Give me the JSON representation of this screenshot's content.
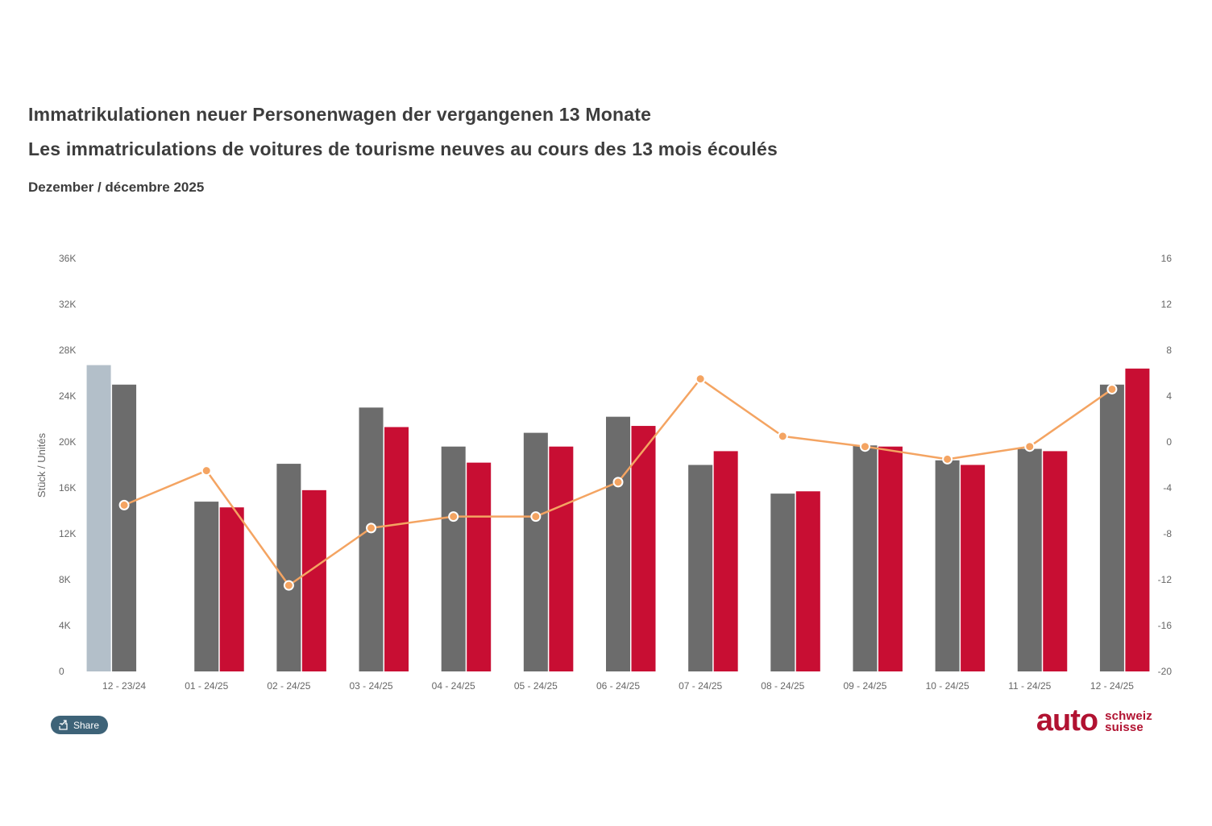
{
  "header": {
    "title_de": "Immatrikulationen neuer Personenwagen der vergangenen 13 Monate",
    "title_fr": "Les immatriculations de voitures de tourisme neuves au cours des 13 mois écoulés",
    "subtitle": "Dezember / décembre 2025"
  },
  "share": {
    "label": "Share"
  },
  "logo": {
    "word": "auto",
    "line1": "schweiz",
    "line2": "suisse",
    "color": "#b11231"
  },
  "chart_data": {
    "type": "combo-column-line",
    "title": "",
    "categories": [
      "12 - 23/24",
      "01 - 24/25",
      "02 - 24/25",
      "03 - 24/25",
      "04 - 24/25",
      "05 - 24/25",
      "06 - 24/25",
      "07 - 24/25",
      "08 - 24/25",
      "09 - 24/25",
      "10 - 24/25",
      "11 - 24/25",
      "12 - 24/25"
    ],
    "series": [
      {
        "name": "column-lightgray",
        "type": "column",
        "color": "#b3bfc9",
        "values": [
          26700,
          null,
          null,
          null,
          null,
          null,
          null,
          null,
          null,
          null,
          null,
          null,
          null
        ]
      },
      {
        "name": "column-darkgray",
        "type": "column",
        "color": "#6c6c6c",
        "values": [
          25000,
          14800,
          18100,
          23000,
          19600,
          20800,
          22200,
          18000,
          15500,
          19700,
          18400,
          19400,
          25000
        ]
      },
      {
        "name": "column-red",
        "type": "column",
        "color": "#c80e33",
        "values": [
          null,
          14300,
          15800,
          21300,
          18200,
          19600,
          21400,
          19200,
          15700,
          19600,
          18000,
          19200,
          26400
        ]
      },
      {
        "name": "line-change",
        "type": "line",
        "color": "#f4a462",
        "marker_stroke": "#ffffff",
        "values": [
          -5.5,
          -2.5,
          -12.5,
          -7.5,
          -6.5,
          -6.5,
          -3.5,
          5.5,
          0.5,
          -0.4,
          -1.5,
          -0.4,
          4.6
        ]
      }
    ],
    "yaxis_left": {
      "title": "Stück / Unités",
      "min": 0,
      "max": 36000,
      "ticks": [
        "0",
        "4K",
        "8K",
        "12K",
        "16K",
        "20K",
        "24K",
        "28K",
        "32K",
        "36K"
      ],
      "tick_color": "#666666"
    },
    "yaxis_right": {
      "title": "",
      "min": -20,
      "max": 16,
      "ticks": [
        "-20",
        "-16",
        "-12",
        "-8",
        "-4",
        "0",
        "4",
        "8",
        "12",
        "16"
      ],
      "tick_color": "#666666"
    },
    "xaxis": {
      "tick_color": "#666666"
    },
    "layout": {
      "grid": false,
      "legend": false
    }
  }
}
